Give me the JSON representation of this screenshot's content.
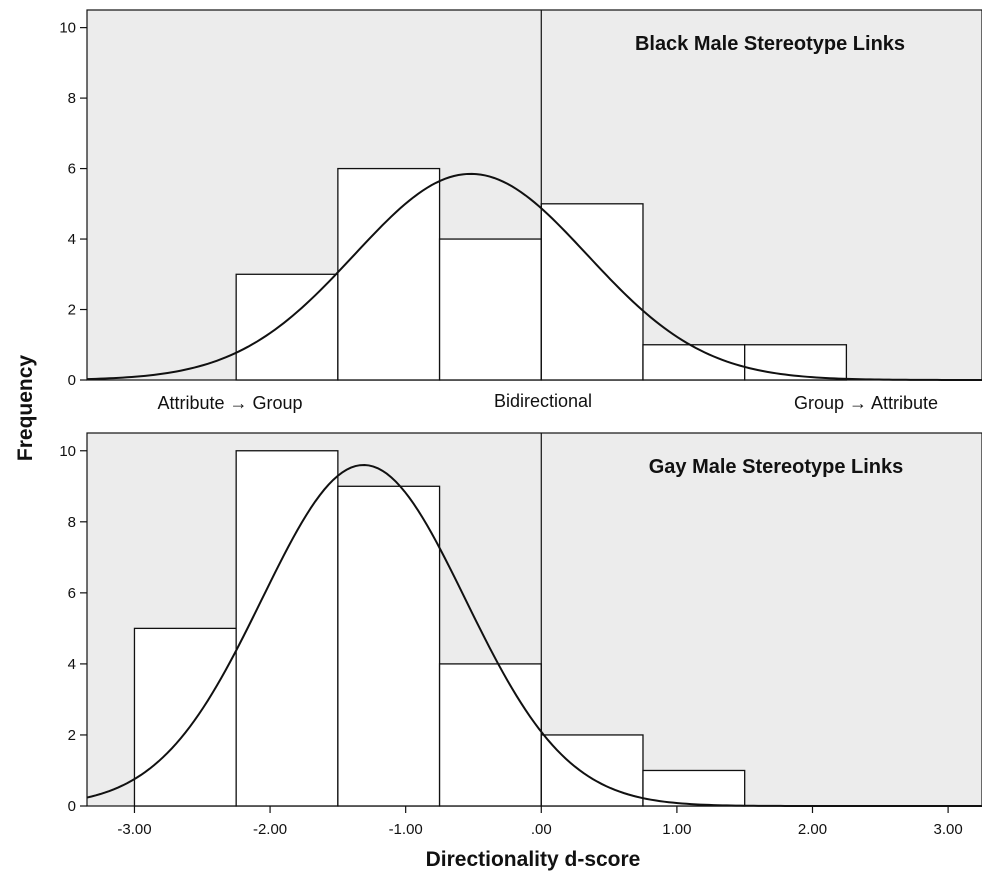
{
  "ylabel": "Frequency",
  "xlabel": "Directionality d-score",
  "x_tick_labels": [
    "-3.00",
    "-2.00",
    "-1.00",
    ".00",
    "1.00",
    "2.00",
    "3.00"
  ],
  "y_tick_labels": [
    "0",
    "2",
    "4",
    "6",
    "8",
    "10"
  ],
  "direction_labels": {
    "left": "Attribute → Group",
    "center": "Bidirectional",
    "right": "Group → Attribute"
  },
  "colors": {
    "plot_background": "#ececec",
    "bar_fill": "#ffffff",
    "line": "#111111"
  },
  "chart_data": [
    {
      "type": "bar",
      "title": "Black Male Stereotype Links",
      "bin_edges": [
        -2.25,
        -1.5,
        -0.75,
        0.0,
        0.75,
        1.5,
        2.25
      ],
      "values": [
        3,
        6,
        4,
        5,
        1,
        1
      ],
      "xlim": [
        -3.35,
        3.25
      ],
      "ylim": [
        0,
        10.5
      ],
      "reference_line_x": 0,
      "normal_curve": {
        "mean": -0.52,
        "sd": 0.86,
        "peak": 5.85
      },
      "grid": false
    },
    {
      "type": "bar",
      "title": "Gay Male Stereotype Links",
      "bin_edges": [
        -3.0,
        -2.25,
        -1.5,
        -0.75,
        0.0,
        0.75,
        1.5
      ],
      "values": [
        5,
        10,
        9,
        4,
        2,
        1
      ],
      "xlim": [
        -3.35,
        3.25
      ],
      "ylim": [
        0,
        10.5
      ],
      "reference_line_x": 0,
      "normal_curve": {
        "mean": -1.31,
        "sd": 0.75,
        "peak": 9.6
      },
      "grid": false
    }
  ]
}
